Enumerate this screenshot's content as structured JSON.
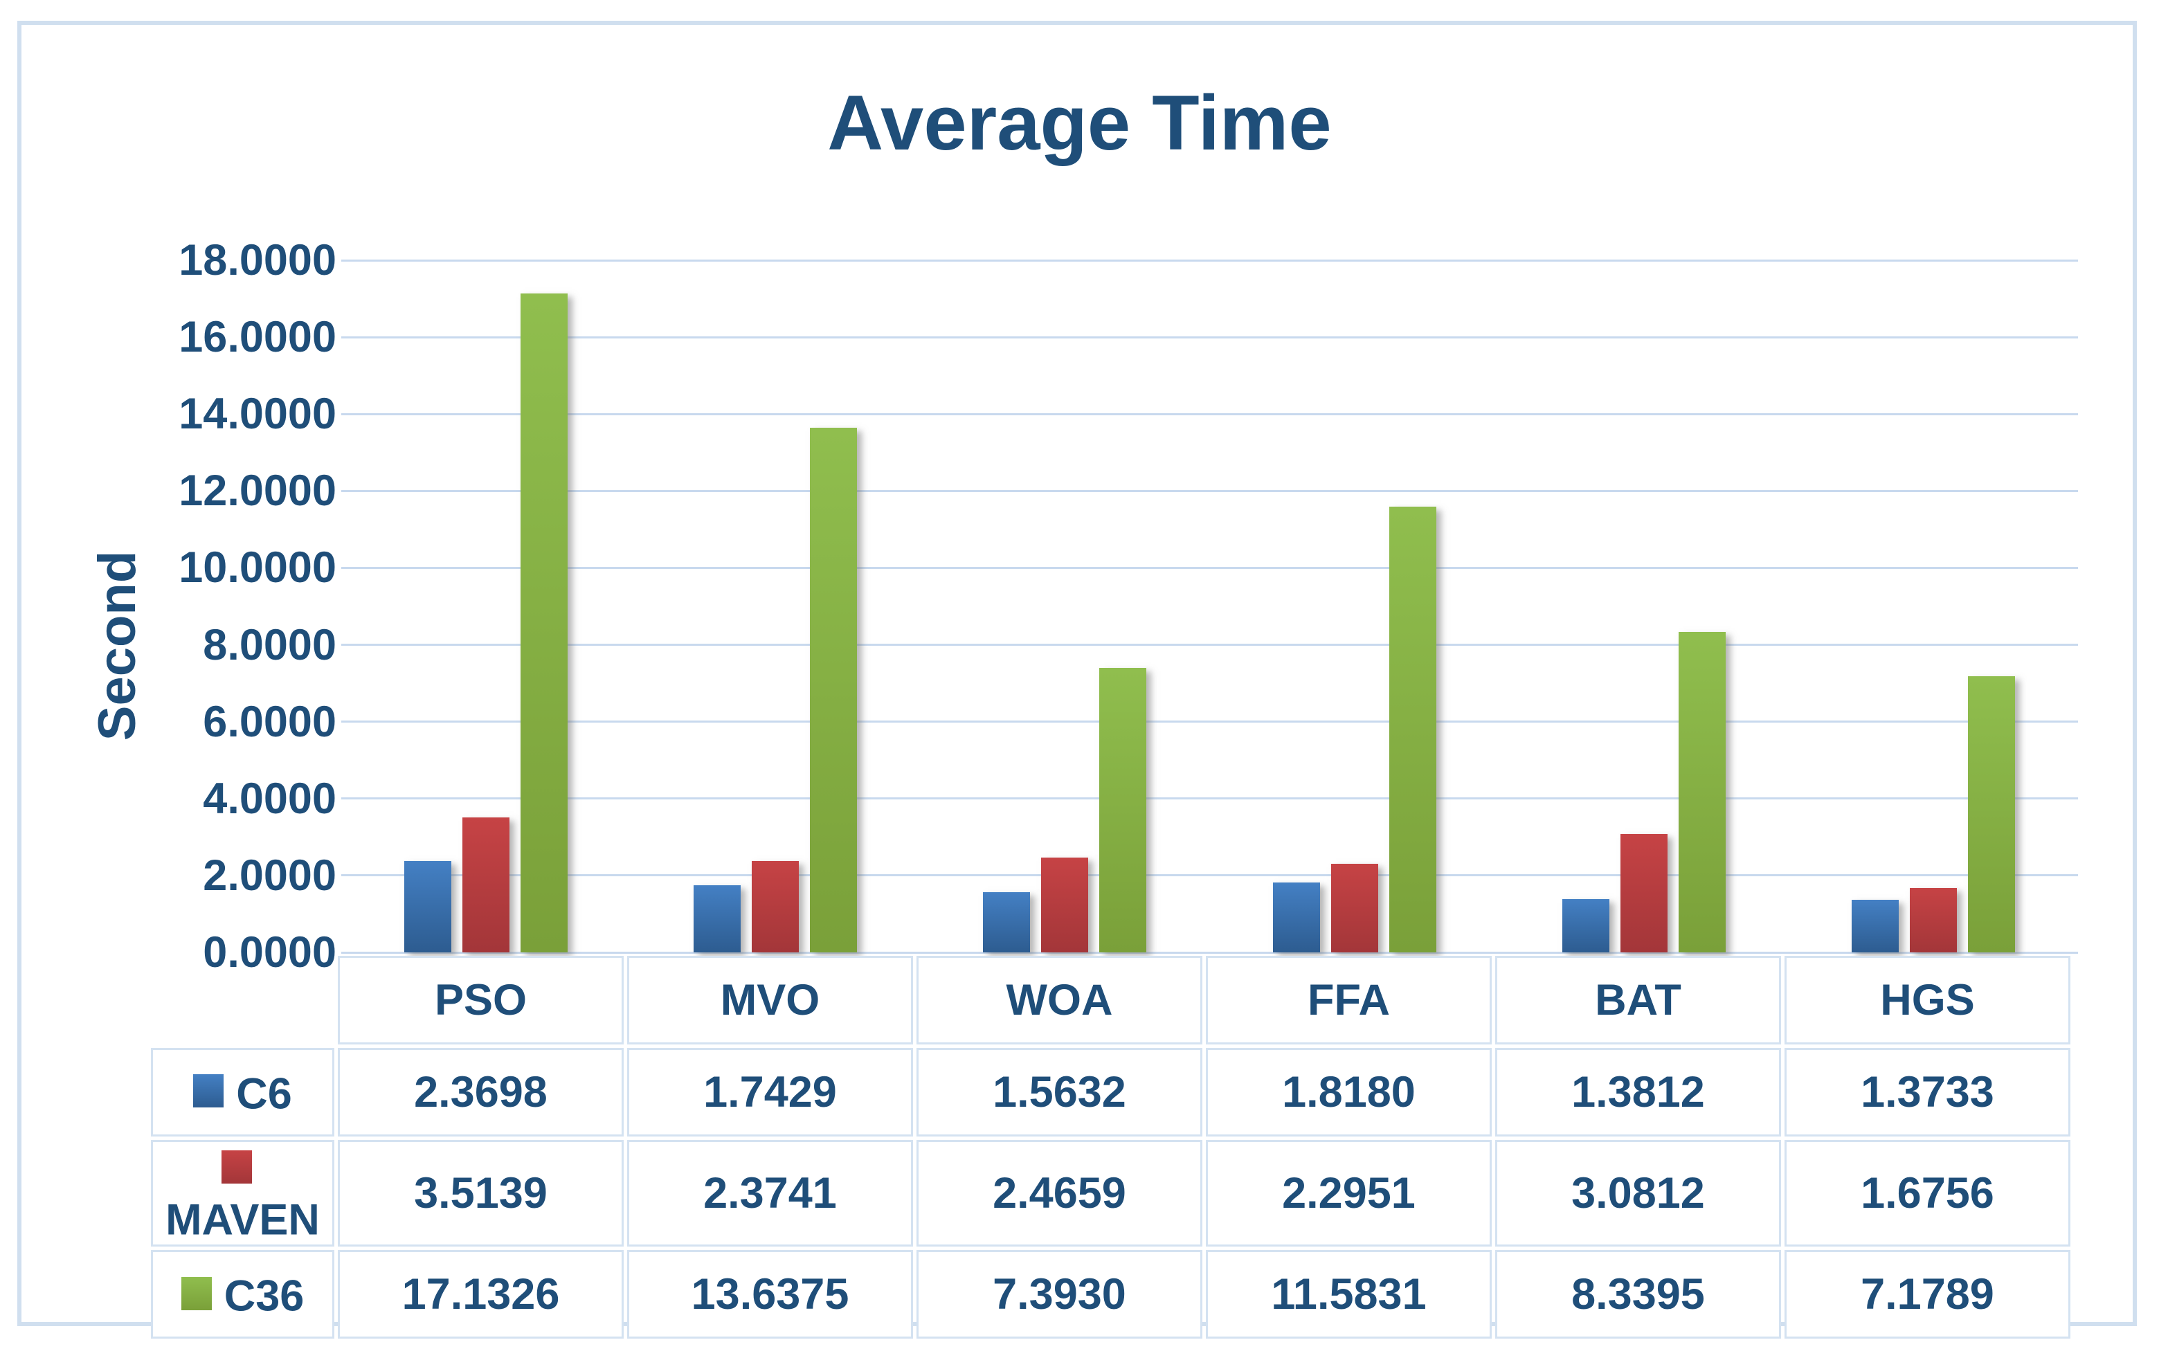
{
  "chart_data": {
    "type": "bar",
    "title": "Average Time",
    "ylabel": "Second",
    "xlabel": "",
    "categories": [
      "PSO",
      "MVO",
      "WOA",
      "FFA",
      "BAT",
      "HGS"
    ],
    "series": [
      {
        "name": "C6",
        "color": "#3E78BE",
        "color_top": "#4480C4",
        "color_bottom": "#2D5C90",
        "values": [
          2.3698,
          1.7429,
          1.5632,
          1.818,
          1.3812,
          1.3733
        ]
      },
      {
        "name": "MAVEN",
        "color": "#BE3B3D",
        "color_top": "#C64345",
        "color_bottom": "#A33639",
        "values": [
          3.5139,
          2.3741,
          2.4659,
          2.2951,
          3.0812,
          1.6756
        ]
      },
      {
        "name": "C36",
        "color": "#8CB845",
        "color_top": "#90BE4E",
        "color_bottom": "#7AA039",
        "values": [
          17.1326,
          13.6375,
          7.393,
          11.5831,
          8.3395,
          7.1789
        ]
      }
    ],
    "ylim": [
      0,
      18
    ],
    "ytick_step": 2,
    "ytick_format_decimals": 4,
    "value_format_decimals": 4,
    "grid": true,
    "legend_position": "data-table-left-column"
  },
  "palette": {
    "text_color": "#1F4E79",
    "title_color": "#1F4E79",
    "grid_color": "#C8D9EE",
    "frame_border_color": "#D0DFEF",
    "table_border_color": "#D4E2F1",
    "background": "#FFFFFF"
  }
}
